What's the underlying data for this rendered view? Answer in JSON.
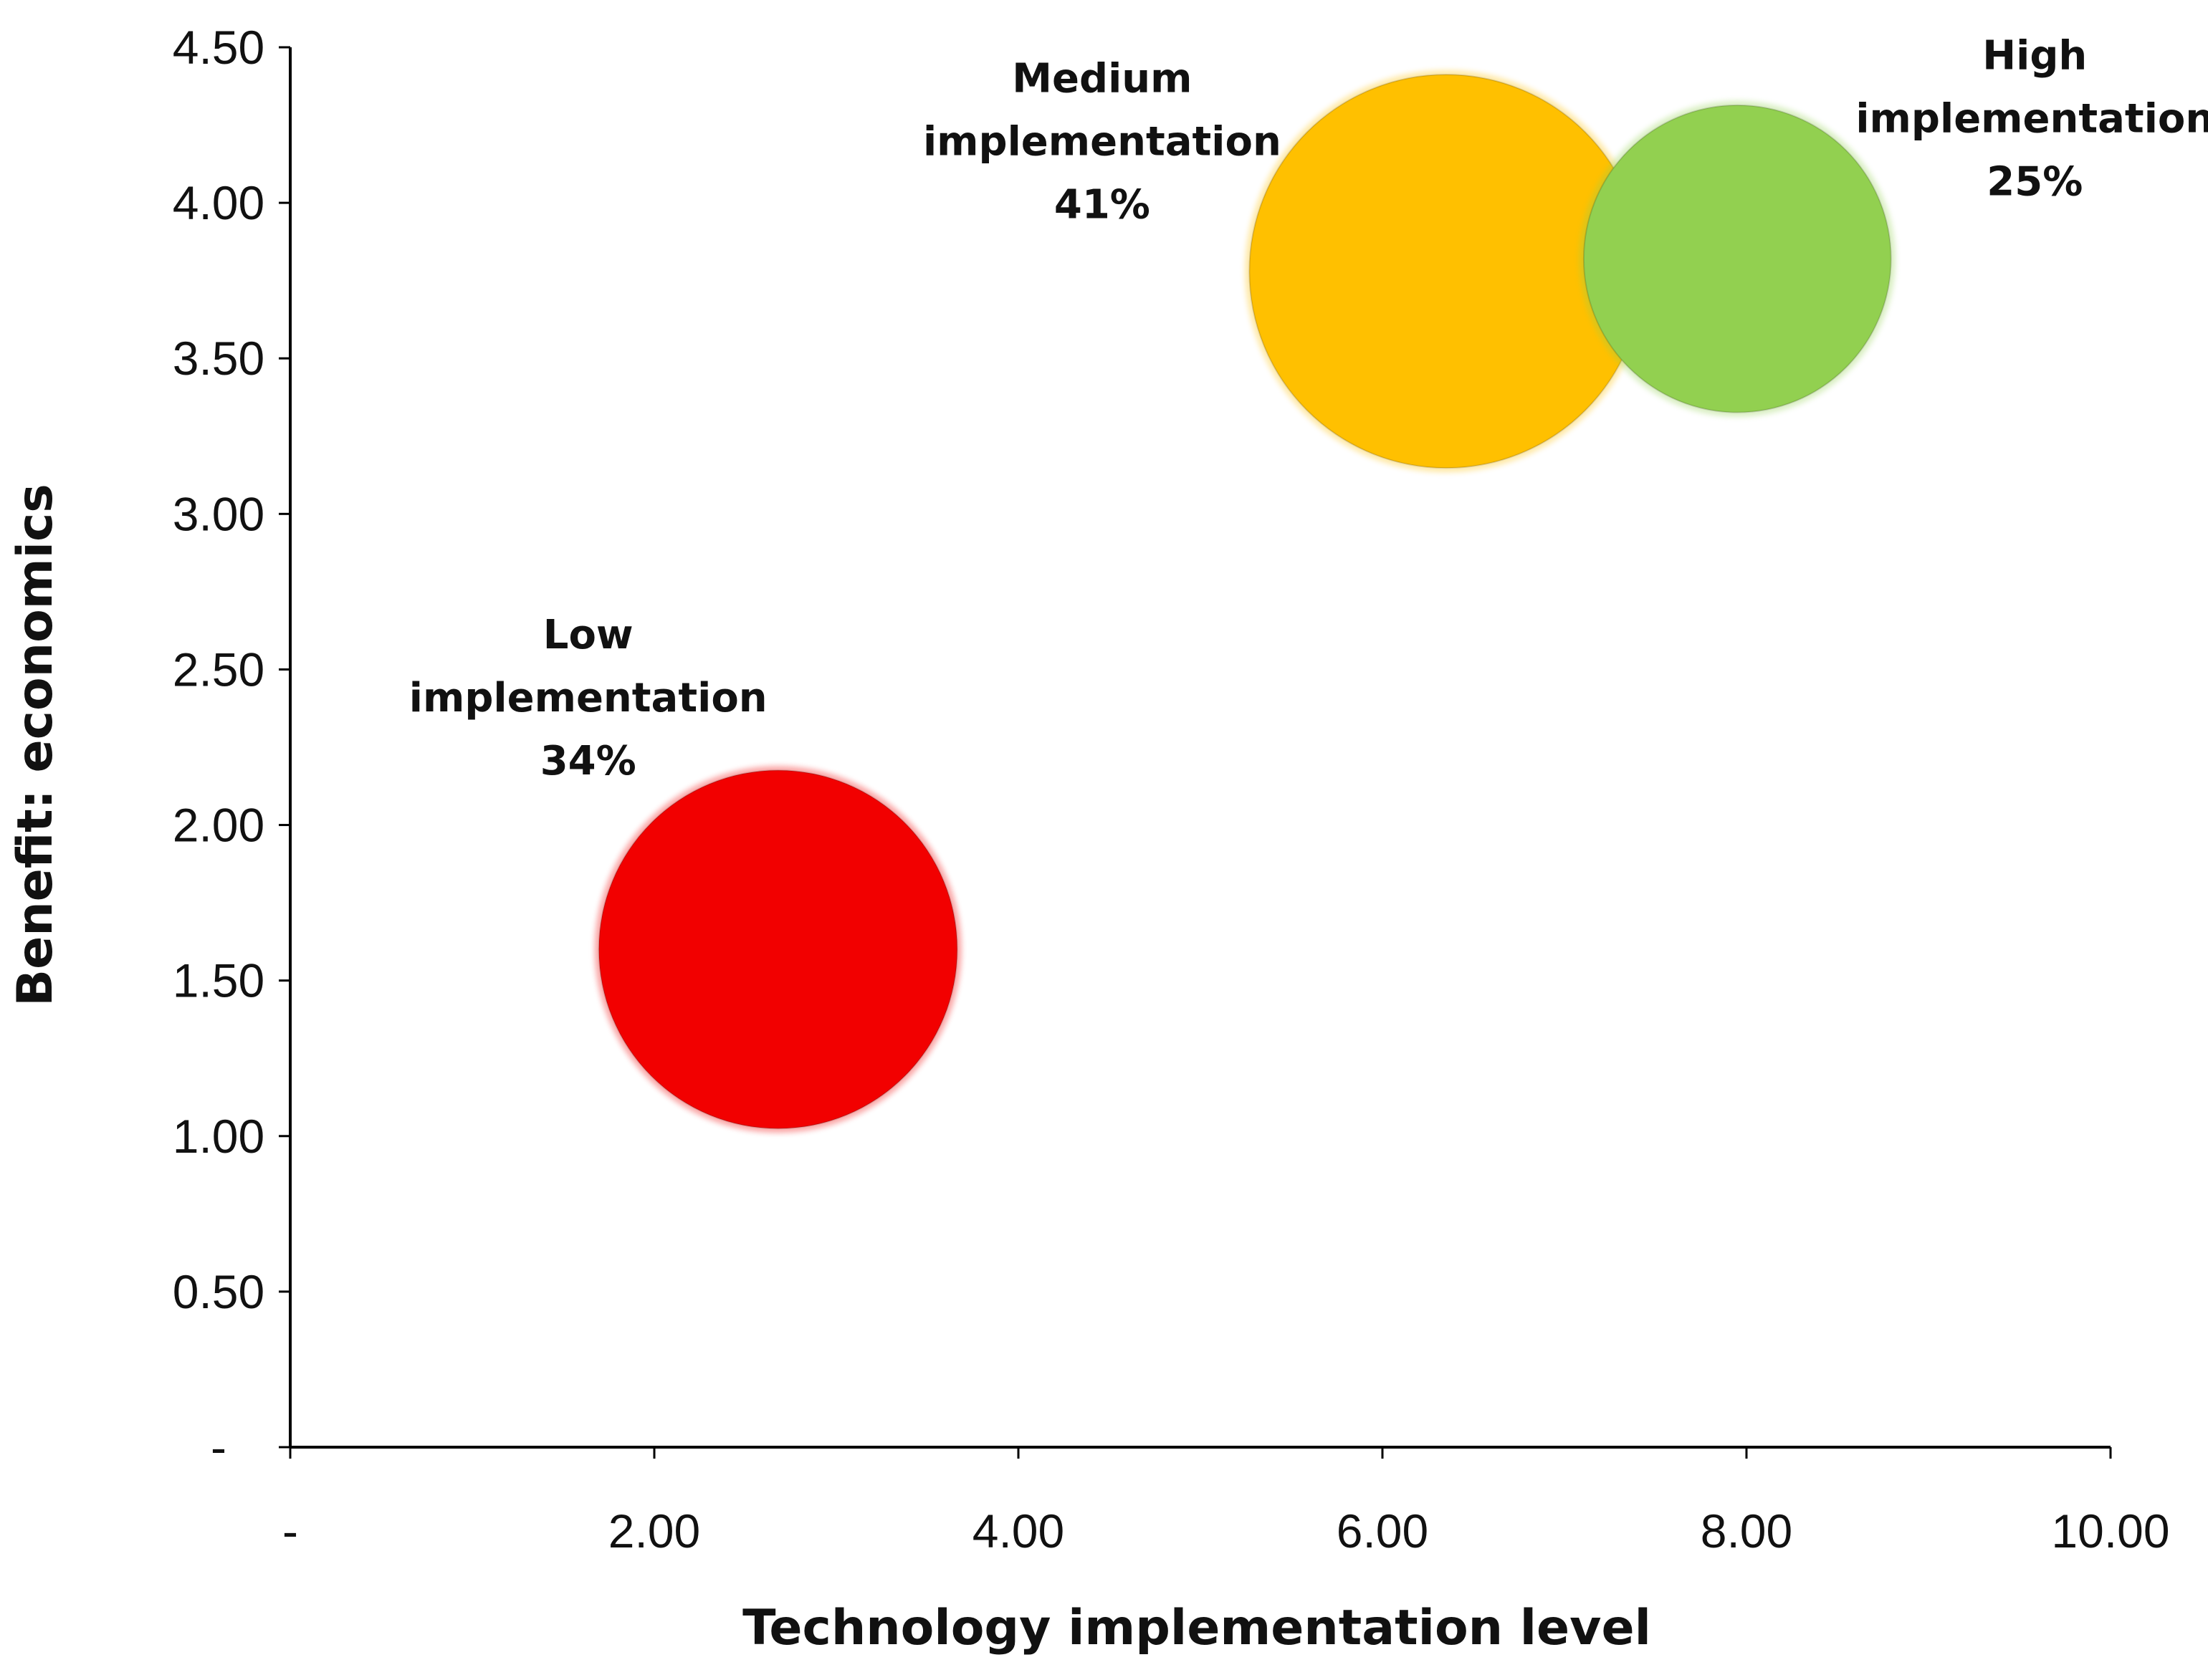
{
  "chart_data": {
    "type": "bubble",
    "title": "",
    "xlabel": "Technology implementation level",
    "ylabel": "Benefit: economics",
    "xlim": [
      0,
      10
    ],
    "ylim": [
      0,
      4.5
    ],
    "grid": false,
    "legend": "none",
    "x_ticks": [
      {
        "value": 0,
        "label": "-"
      },
      {
        "value": 2,
        "label": "2.00"
      },
      {
        "value": 4,
        "label": "4.00"
      },
      {
        "value": 6,
        "label": "6.00"
      },
      {
        "value": 8,
        "label": "8.00"
      },
      {
        "value": 10,
        "label": "10.00"
      }
    ],
    "y_ticks": [
      {
        "value": 0,
        "label": "-"
      },
      {
        "value": 0.5,
        "label": "0.50"
      },
      {
        "value": 1.0,
        "label": "1.00"
      },
      {
        "value": 1.5,
        "label": "1.50"
      },
      {
        "value": 2.0,
        "label": "2.00"
      },
      {
        "value": 2.5,
        "label": "2.50"
      },
      {
        "value": 3.0,
        "label": "3.00"
      },
      {
        "value": 3.5,
        "label": "3.50"
      },
      {
        "value": 4.0,
        "label": "4.00"
      },
      {
        "value": 4.5,
        "label": "4.50"
      }
    ],
    "series": [
      {
        "name": "Low implementation",
        "x": 2.68,
        "y": 1.6,
        "share_pct": 34,
        "label_lines": [
          "Low",
          "implementation",
          "34%"
        ],
        "color": "#f20000"
      },
      {
        "name": "Medium implementation",
        "x": 6.35,
        "y": 3.78,
        "share_pct": 41,
        "label_lines": [
          "Medium",
          "implementation",
          "41%"
        ],
        "color": "#ffc000"
      },
      {
        "name": "High implementation",
        "x": 7.95,
        "y": 3.82,
        "share_pct": 25,
        "label_lines": [
          "High",
          "implementation",
          "25%"
        ],
        "color": "#92d050"
      }
    ]
  }
}
